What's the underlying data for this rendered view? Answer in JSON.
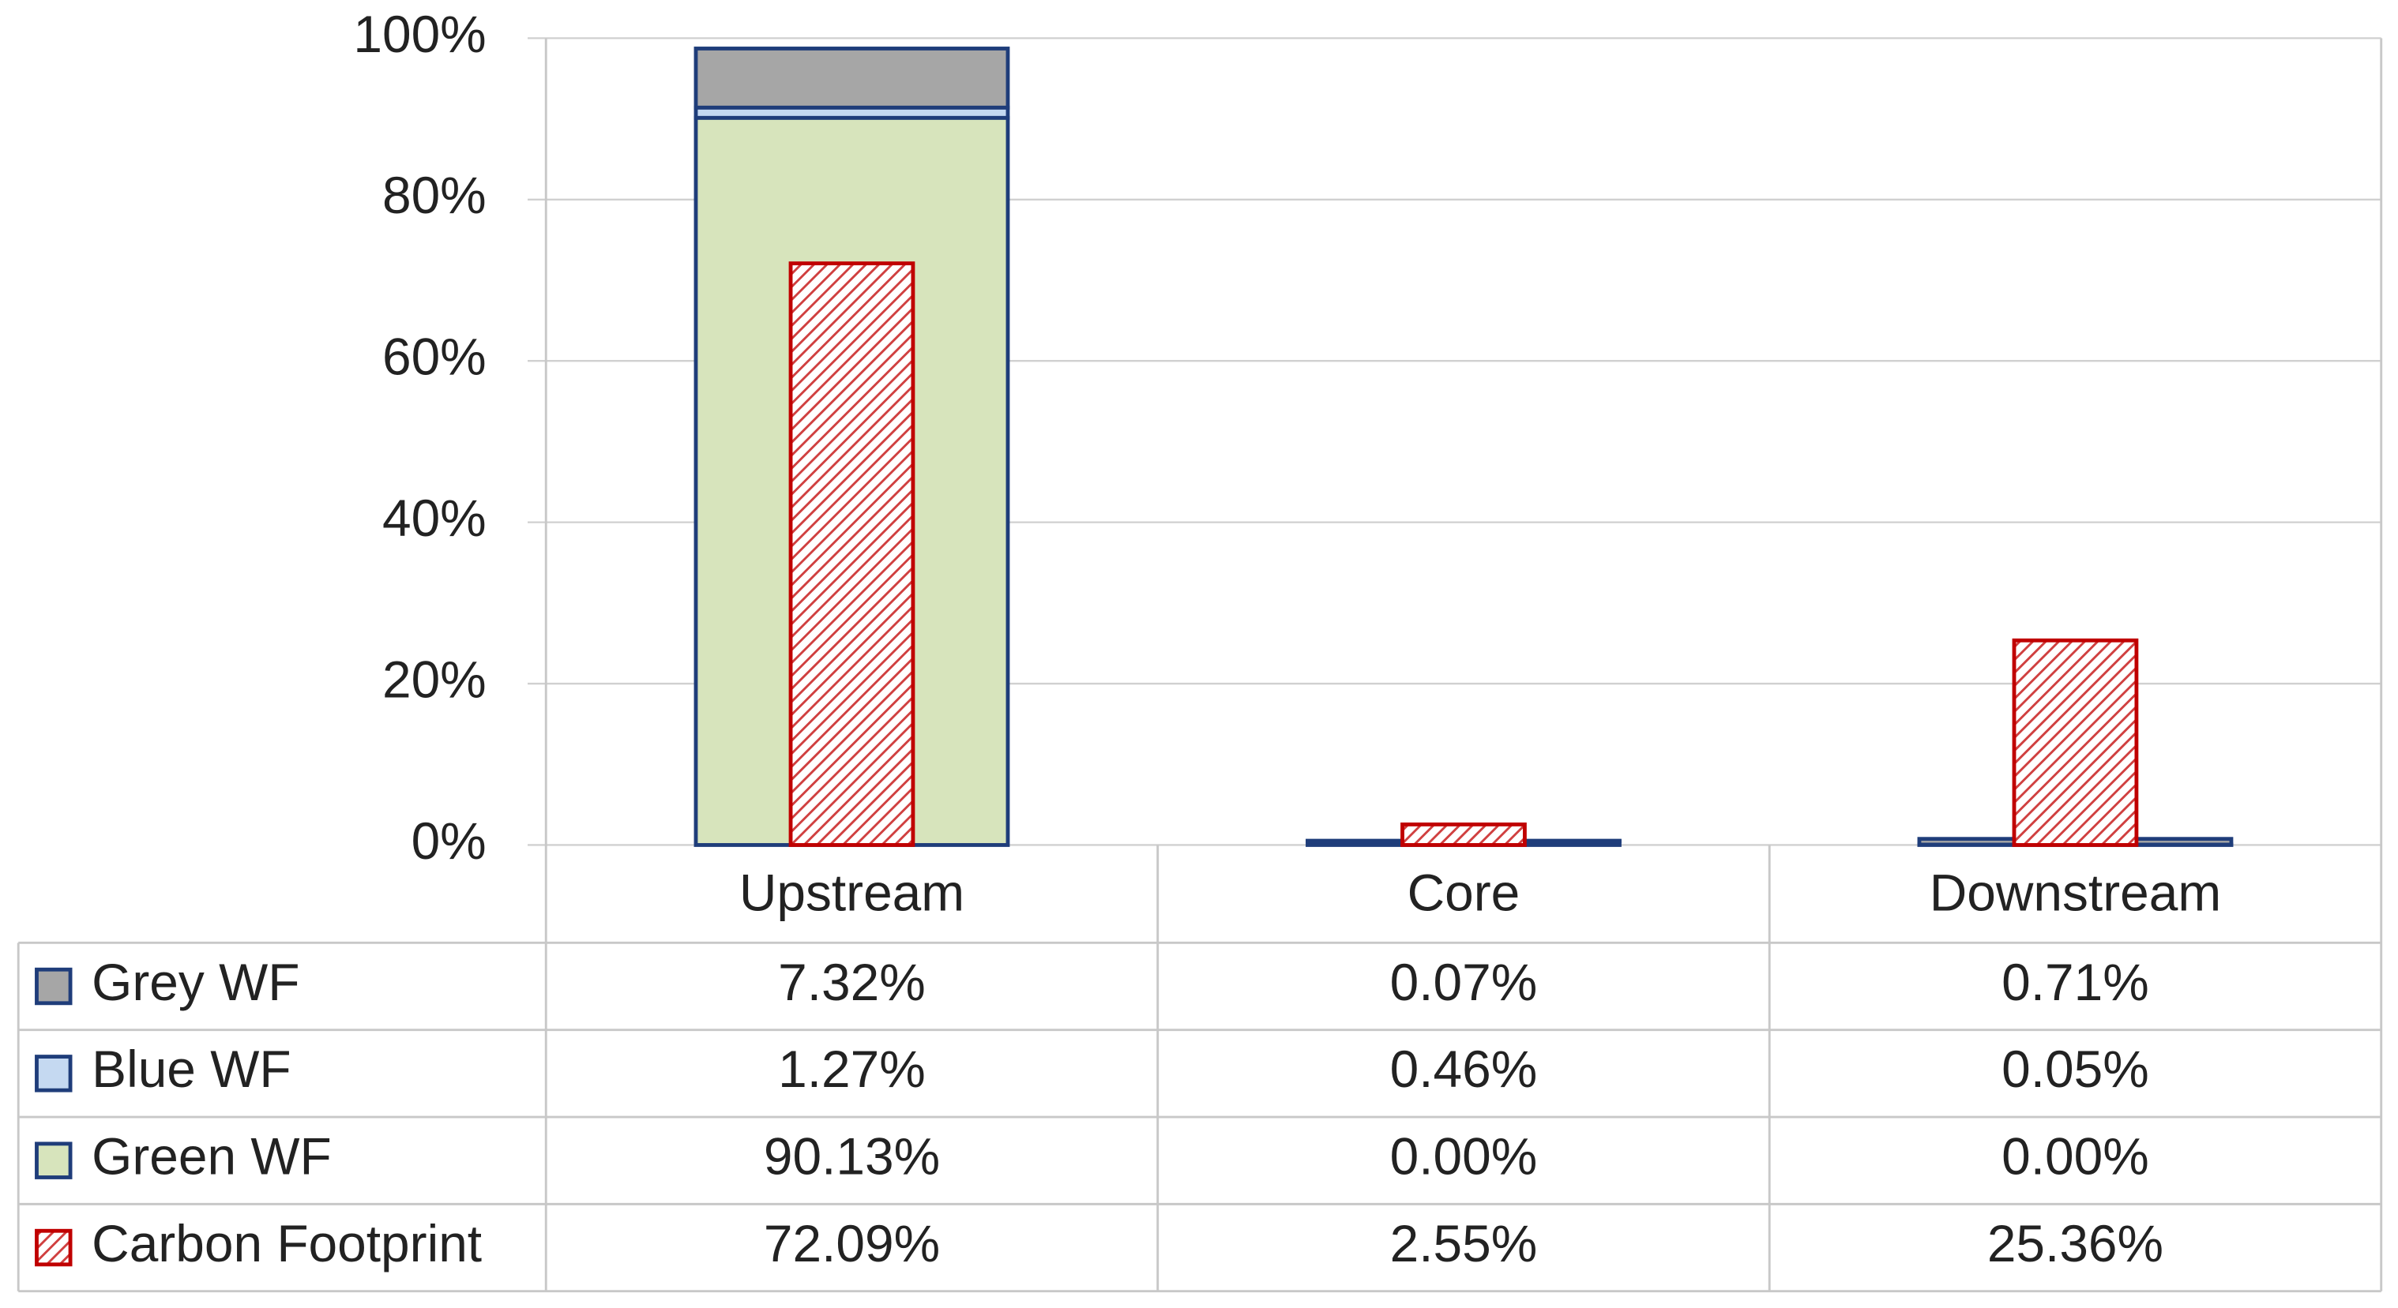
{
  "chart_data": {
    "type": "bar",
    "stacked": true,
    "categories": [
      "Upstream",
      "Core",
      "Downstream"
    ],
    "series": [
      {
        "name": "Grey WF",
        "color": "#a6a6a6",
        "stack": "water",
        "values": [
          7.32,
          0.07,
          0.71
        ],
        "value_labels": [
          "7.32%",
          "0.07%",
          "0.71%"
        ]
      },
      {
        "name": "Blue WF",
        "color": "#c5d9f1",
        "stack": "water",
        "values": [
          1.27,
          0.46,
          0.05
        ],
        "value_labels": [
          "1.27%",
          "0.46%",
          "0.05%"
        ]
      },
      {
        "name": "Green WF",
        "color": "#d7e4bc",
        "stack": "water",
        "values": [
          90.13,
          0.0,
          0.0
        ],
        "value_labels": [
          "90.13%",
          "0.00%",
          "0.00%"
        ]
      },
      {
        "name": "Carbon Footprint",
        "color": "#c00000",
        "stack": "carbon",
        "values": [
          72.09,
          2.55,
          25.36
        ],
        "value_labels": [
          "72.09%",
          "2.55%",
          "25.36%"
        ]
      }
    ],
    "ylim": [
      0,
      100
    ],
    "yticks": [
      {
        "value": 0,
        "label": "0%"
      },
      {
        "value": 20,
        "label": "20%"
      },
      {
        "value": 40,
        "label": "40%"
      },
      {
        "value": 60,
        "label": "60%"
      },
      {
        "value": 80,
        "label": "80%"
      },
      {
        "value": 100,
        "label": "100%"
      }
    ],
    "grid": true
  }
}
